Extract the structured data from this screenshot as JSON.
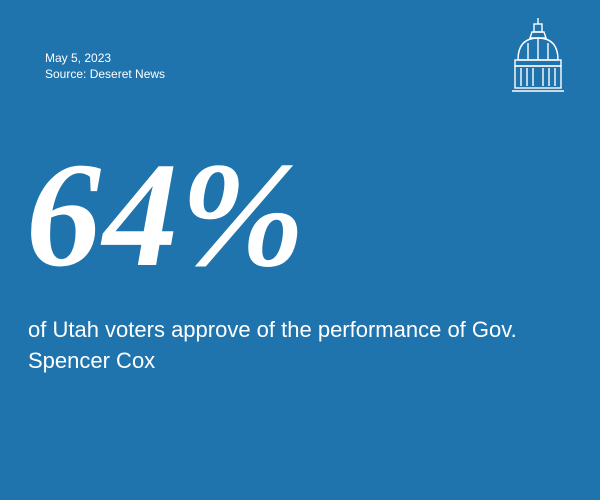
{
  "header": {
    "date": "May 5, 2023",
    "source": "Source:  Deseret News"
  },
  "stat": {
    "value": "64%",
    "caption": "of Utah voters approve of the performance of Gov. Spencer Cox"
  }
}
